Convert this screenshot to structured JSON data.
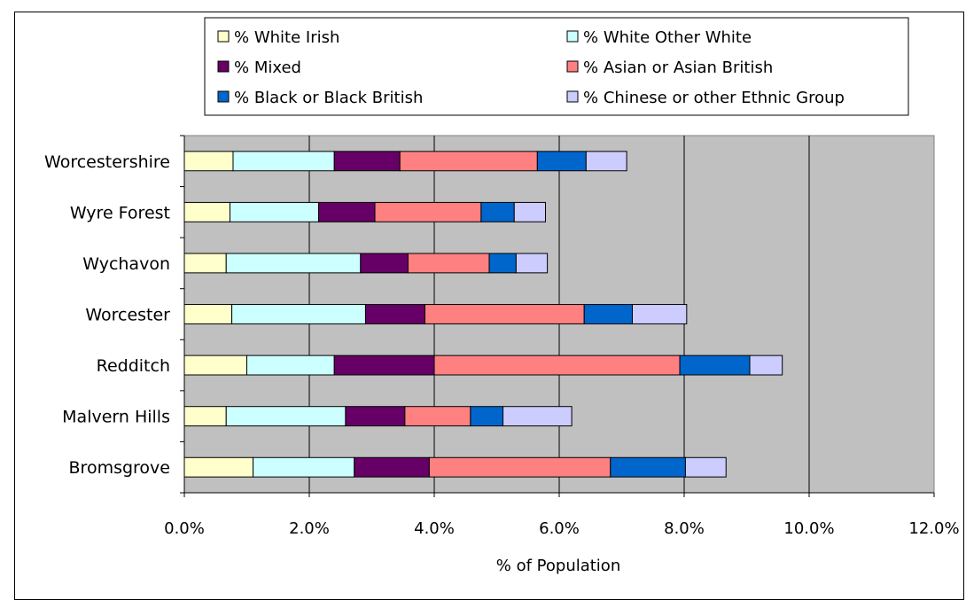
{
  "chart_data": {
    "type": "bar",
    "orientation": "horizontal",
    "stacked": true,
    "categories": [
      "Worcestershire",
      "Wyre Forest",
      "Wychavon",
      "Worcester",
      "Redditch",
      "Malvern Hills",
      "Bromsgrove"
    ],
    "series": [
      {
        "name": "% White Irish",
        "color": "#ffffcc",
        "values": [
          0.78,
          0.73,
          0.67,
          0.76,
          1.0,
          0.67,
          1.1
        ]
      },
      {
        "name": "% White Other White",
        "color": "#ccffff",
        "values": [
          1.62,
          1.42,
          2.15,
          2.14,
          1.4,
          1.91,
          1.62
        ]
      },
      {
        "name": "% Mixed",
        "color": "#660066",
        "values": [
          1.05,
          0.9,
          0.76,
          0.95,
          1.6,
          0.95,
          1.2
        ]
      },
      {
        "name": "% Asian or Asian British",
        "color": "#ff8080",
        "values": [
          2.2,
          1.7,
          1.3,
          2.55,
          3.93,
          1.05,
          2.9
        ]
      },
      {
        "name": "% Black or Black British",
        "color": "#0066cc",
        "values": [
          0.78,
          0.53,
          0.43,
          0.77,
          1.12,
          0.52,
          1.2
        ]
      },
      {
        "name": "% Chinese or other Ethnic Group",
        "color": "#ccccff",
        "values": [
          0.65,
          0.5,
          0.5,
          0.87,
          0.52,
          1.1,
          0.65
        ]
      }
    ],
    "xlabel": "% of Population",
    "ylabel": "",
    "xlim": [
      0,
      12
    ],
    "xticks": [
      "0.0%",
      "2.0%",
      "4.0%",
      "6.0%",
      "8.0%",
      "10.0%",
      "12.0%"
    ],
    "grid": true,
    "plot_background": "#c0c0c0",
    "legend_position": "top"
  }
}
